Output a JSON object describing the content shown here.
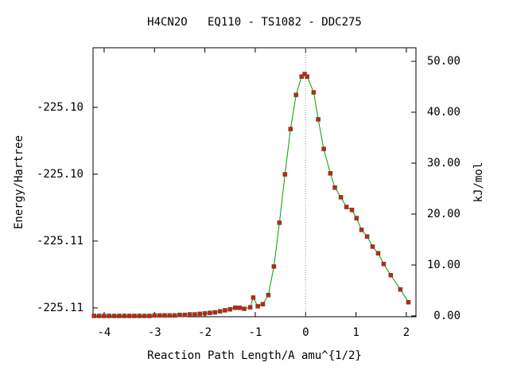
{
  "chart_data": {
    "type": "line",
    "title": "H4CN2O   EQ110 - TS1082 - DDC275",
    "x_label": "Reaction Path Length/A amu^{1/2}",
    "y_label": "Energy/Hartree",
    "y2_label": "kJ/mol",
    "xlim": [
      -4.22,
      2.19
    ],
    "xticks": [
      -4,
      -3,
      -2,
      -1,
      0,
      1,
      2
    ],
    "ylim": [
      -225.11316,
      -225.09304
    ],
    "yticks": [
      {
        "value": -225.1125,
        "label": "-225.11"
      },
      {
        "value": -225.1075,
        "label": "-225.11"
      },
      {
        "value": -225.1025,
        "label": "-225.10"
      },
      {
        "value": -225.0975,
        "label": "-225.10"
      }
    ],
    "y2lim": [
      -0.16,
      52.66
    ],
    "y2ticks": [
      {
        "value": 0,
        "label": "0.00"
      },
      {
        "value": 10,
        "label": "10.00"
      },
      {
        "value": 20,
        "label": "20.00"
      },
      {
        "value": 30,
        "label": "30.00"
      },
      {
        "value": 40,
        "label": "40.00"
      },
      {
        "value": 50,
        "label": "50.00"
      }
    ],
    "x": [
      -4.2,
      -4.1,
      -4.0,
      -3.9,
      -3.8,
      -3.7,
      -3.6,
      -3.5,
      -3.4,
      -3.3,
      -3.2,
      -3.1,
      -3.0,
      -2.9,
      -2.8,
      -2.7,
      -2.6,
      -2.5,
      -2.4,
      -2.3,
      -2.2,
      -2.1,
      -2.0,
      -1.9,
      -1.8,
      -1.7,
      -1.6,
      -1.5,
      -1.4,
      -1.31,
      -1.22,
      -1.1,
      -1.04,
      -0.95,
      -0.85,
      -0.74,
      -0.63,
      -0.52,
      -0.41,
      -0.3,
      -0.19,
      -0.08,
      -0.02,
      0.03,
      0.16,
      0.25,
      0.36,
      0.49,
      0.58,
      0.7,
      0.81,
      0.92,
      1.01,
      1.11,
      1.22,
      1.33,
      1.44,
      1.55,
      1.69,
      1.88,
      2.04
    ],
    "series": [
      {
        "color": "#cc2200",
        "line_color": "#00a000",
        "axis": "y2",
        "values": [
          0,
          0,
          0,
          0,
          0,
          0,
          0,
          0,
          0,
          0,
          0,
          0,
          0.1,
          0.1,
          0.1,
          0.1,
          0.1,
          0.2,
          0.2,
          0.3,
          0.3,
          0.4,
          0.5,
          0.6,
          0.7,
          0.9,
          1.1,
          1.3,
          1.6,
          1.6,
          1.4,
          1.7,
          3.6,
          1.9,
          2.3,
          4.1,
          9.7,
          18.3,
          27.8,
          36.7,
          43.4,
          47.0,
          47.5,
          47.0,
          43.9,
          38.6,
          32.8,
          28.0,
          25.2,
          23.3,
          21.4,
          20.8,
          19.2,
          16.9,
          15.6,
          13.6,
          12.3,
          10.2,
          8.0,
          5.2,
          2.7
        ]
      }
    ]
  }
}
